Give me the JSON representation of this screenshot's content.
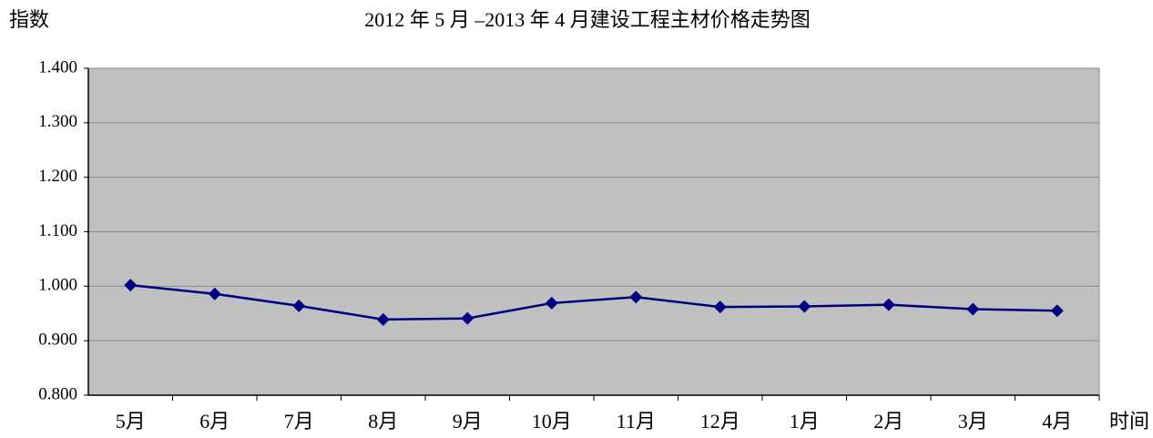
{
  "chart_data": {
    "type": "line",
    "title": "2012 年 5 月 –2013 年 4 月建设工程主材价格走势图",
    "y_label": "指数",
    "x_label": "时间",
    "categories": [
      "5月",
      "6月",
      "7月",
      "8月",
      "9月",
      "10月",
      "11月",
      "12月",
      "1月",
      "2月",
      "3月",
      "4月"
    ],
    "series": [
      {
        "color": "#000080",
        "values": [
          1.002,
          0.986,
          0.964,
          0.939,
          0.941,
          0.969,
          0.98,
          0.962,
          0.963,
          0.966,
          0.958,
          0.955
        ]
      }
    ],
    "ylim": [
      0.8,
      1.4
    ],
    "yticks": [
      {
        "value": 0.8,
        "label": "0.800"
      },
      {
        "value": 0.9,
        "label": "0.900"
      },
      {
        "value": 1.0,
        "label": "1.000"
      },
      {
        "value": 1.1,
        "label": "1.100"
      },
      {
        "value": 1.2,
        "label": "1.200"
      },
      {
        "value": 1.3,
        "label": "1.300"
      },
      {
        "value": 1.4,
        "label": "1.400"
      }
    ],
    "grid": true
  }
}
